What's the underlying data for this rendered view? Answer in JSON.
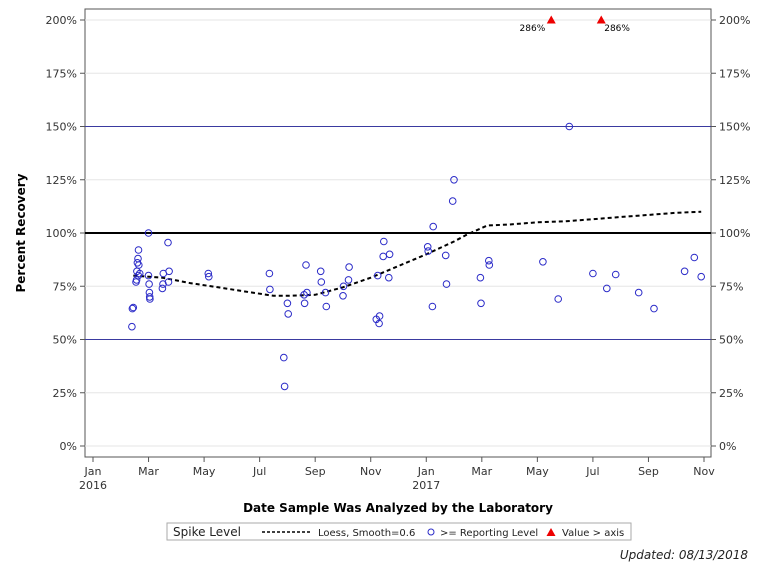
{
  "footnote": "Updated: 08/13/2018",
  "chart_data": {
    "type": "scatter",
    "title": "",
    "xlabel": "Date Sample Was Analyzed by the Laboratory",
    "ylabel": "Percent Recovery",
    "xlim": [
      0,
      22
    ],
    "ylim": [
      0,
      200
    ],
    "x_unit": "months since 2016-01-01",
    "x_ticks": [
      {
        "x": 0,
        "label": "Jan",
        "year": "2016"
      },
      {
        "x": 2,
        "label": "Mar",
        "year": ""
      },
      {
        "x": 4,
        "label": "May",
        "year": ""
      },
      {
        "x": 6,
        "label": "Jul",
        "year": ""
      },
      {
        "x": 8,
        "label": "Sep",
        "year": ""
      },
      {
        "x": 10,
        "label": "Nov",
        "year": ""
      },
      {
        "x": 12,
        "label": "Jan",
        "year": "2017"
      },
      {
        "x": 14,
        "label": "Mar",
        "year": ""
      },
      {
        "x": 16,
        "label": "May",
        "year": ""
      },
      {
        "x": 18,
        "label": "Jul",
        "year": ""
      },
      {
        "x": 20,
        "label": "Sep",
        "year": ""
      },
      {
        "x": 22,
        "label": "Nov",
        "year": ""
      }
    ],
    "y_ticks": [
      {
        "v": 0,
        "label": "0%"
      },
      {
        "v": 25,
        "label": "25%"
      },
      {
        "v": 50,
        "label": "50%"
      },
      {
        "v": 75,
        "label": "75%"
      },
      {
        "v": 100,
        "label": "100%"
      },
      {
        "v": 125,
        "label": "125%"
      },
      {
        "v": 150,
        "label": "150%"
      },
      {
        "v": 175,
        "label": "175%"
      },
      {
        "v": 200,
        "label": "200%"
      }
    ],
    "reference_lines": [
      {
        "v": 50,
        "color": "#3a3aa0",
        "style": "thin"
      },
      {
        "v": 100,
        "color": "#000000",
        "style": "thick"
      },
      {
        "v": 150,
        "color": "#3a3aa0",
        "style": "thin"
      }
    ],
    "series": [
      {
        "name": ">= Reporting Level",
        "kind": "points",
        "color": "#2b2bc8",
        "points": [
          [
            1.4,
            56
          ],
          [
            1.42,
            64.5
          ],
          [
            1.45,
            65
          ],
          [
            1.55,
            77
          ],
          [
            1.57,
            78
          ],
          [
            1.58,
            82
          ],
          [
            1.6,
            86
          ],
          [
            1.62,
            88
          ],
          [
            1.63,
            80
          ],
          [
            1.64,
            92
          ],
          [
            1.65,
            85
          ],
          [
            1.68,
            81
          ],
          [
            2.0,
            100
          ],
          [
            2.0,
            80
          ],
          [
            2.02,
            76
          ],
          [
            2.03,
            72
          ],
          [
            2.04,
            70
          ],
          [
            2.05,
            69
          ],
          [
            2.5,
            74
          ],
          [
            2.52,
            76
          ],
          [
            2.53,
            81
          ],
          [
            2.7,
            95.5
          ],
          [
            2.72,
            77
          ],
          [
            2.74,
            82
          ],
          [
            4.15,
            81
          ],
          [
            4.17,
            79.5
          ],
          [
            6.35,
            81
          ],
          [
            6.37,
            73.5
          ],
          [
            6.87,
            41.5
          ],
          [
            6.9,
            28
          ],
          [
            7.0,
            67
          ],
          [
            7.03,
            62
          ],
          [
            7.6,
            71
          ],
          [
            7.62,
            67
          ],
          [
            7.67,
            85
          ],
          [
            7.7,
            72
          ],
          [
            8.2,
            82
          ],
          [
            8.22,
            77
          ],
          [
            8.37,
            72
          ],
          [
            8.4,
            65.5
          ],
          [
            9.0,
            70.5
          ],
          [
            9.02,
            75
          ],
          [
            9.2,
            78
          ],
          [
            9.22,
            84
          ],
          [
            10.2,
            59.5
          ],
          [
            10.25,
            80
          ],
          [
            10.3,
            57.5
          ],
          [
            10.32,
            61
          ],
          [
            10.45,
            89
          ],
          [
            10.47,
            96
          ],
          [
            10.65,
            79
          ],
          [
            10.68,
            90
          ],
          [
            12.05,
            93.5
          ],
          [
            12.07,
            91.5
          ],
          [
            12.22,
            65.5
          ],
          [
            12.25,
            103
          ],
          [
            12.7,
            89.5
          ],
          [
            12.73,
            76
          ],
          [
            12.95,
            115
          ],
          [
            13.0,
            125
          ],
          [
            13.95,
            79
          ],
          [
            13.97,
            67
          ],
          [
            14.25,
            87
          ],
          [
            14.27,
            85
          ],
          [
            16.2,
            86.5
          ],
          [
            16.75,
            69
          ],
          [
            17.15,
            150
          ],
          [
            18.0,
            81
          ],
          [
            18.5,
            74
          ],
          [
            18.82,
            80.5
          ],
          [
            19.65,
            72
          ],
          [
            20.2,
            64.5
          ],
          [
            21.3,
            82
          ],
          [
            21.65,
            88.5
          ],
          [
            21.9,
            79.5
          ]
        ]
      },
      {
        "name": "Value > axis",
        "kind": "triangles",
        "color": "#ee0000",
        "points": [
          {
            "x": 16.5,
            "y": 200,
            "label": "286%"
          },
          {
            "x": 18.3,
            "y": 200,
            "label": "286%"
          }
        ]
      },
      {
        "name": "Loess, Smooth=0.6",
        "kind": "line",
        "color": "#000000",
        "dash": true,
        "points": [
          [
            1.45,
            80
          ],
          [
            2.5,
            79
          ],
          [
            3.5,
            76.5
          ],
          [
            4.5,
            74.5
          ],
          [
            5.5,
            72.5
          ],
          [
            6.5,
            70.5
          ],
          [
            7.0,
            70.5
          ],
          [
            8.0,
            71
          ],
          [
            9.0,
            74.5
          ],
          [
            10.0,
            79
          ],
          [
            11.0,
            84.5
          ],
          [
            12.0,
            90
          ],
          [
            13.0,
            96
          ],
          [
            13.5,
            99.5
          ],
          [
            14.2,
            103.5
          ],
          [
            15.0,
            104
          ],
          [
            16.0,
            105
          ],
          [
            17.0,
            105.5
          ],
          [
            18.0,
            106.5
          ],
          [
            19.0,
            107.5
          ],
          [
            20.0,
            108.5
          ],
          [
            21.0,
            109.5
          ],
          [
            21.9,
            110
          ]
        ]
      }
    ],
    "legend": {
      "position": "bottom-center",
      "title": "Spike Level",
      "entries": [
        {
          "label": "Loess, Smooth=0.6",
          "marker": "dashed-line"
        },
        {
          "label": ">= Reporting Level",
          "marker": "circle"
        },
        {
          "label": "Value > axis",
          "marker": "triangle"
        }
      ]
    }
  }
}
